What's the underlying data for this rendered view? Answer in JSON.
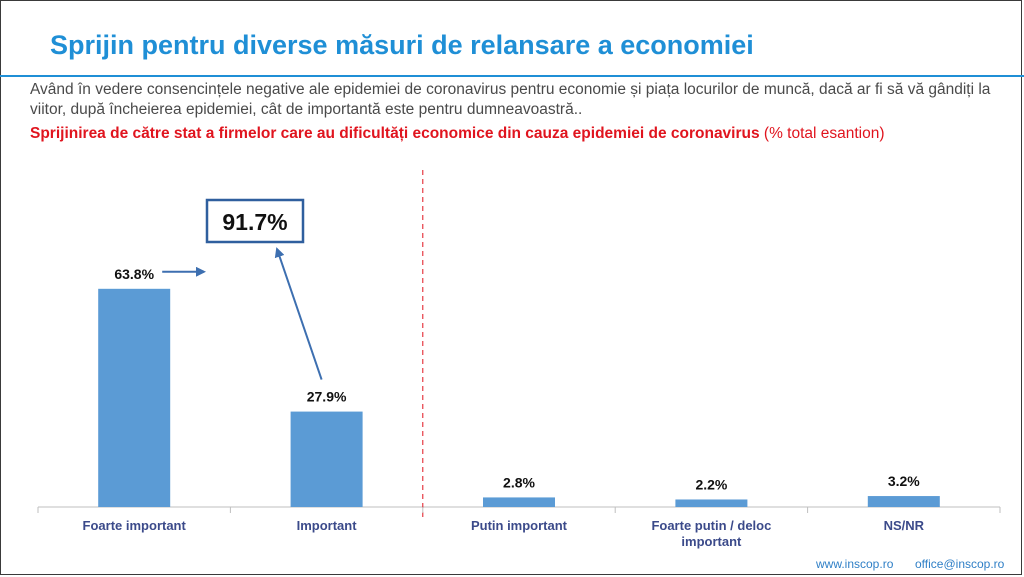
{
  "slide": {
    "title": "Sprijin pentru diverse măsuri de relansare a economiei",
    "question": "Având în vedere consencințele negative ale epidemiei de coronavirus pentru economie și piața locurilor de muncă, dacă ar fi să vă gândiți la viitor, după încheierea epidemiei, cât de importantă este pentru dumneavoastră..",
    "subtitle_bold": "Sprijinirea de către stat a firmelor care au dificultăți economice din cauza epidemiei de coronavirus",
    "subtitle_rest": " (% total esantion)",
    "callout_value": "91.7%",
    "footer_web": "www.inscop.ro",
    "footer_email": "office@inscop.ro"
  },
  "colors": {
    "bar": "#5b9bd5",
    "title": "#1f8fd6",
    "accent_red": "#e0141e",
    "arrow": "#3d6fb0",
    "callout_border": "#2f5f9e"
  },
  "chart_data": {
    "type": "bar",
    "categories": [
      "Foarte important",
      "Important",
      "Putin important",
      "Foarte putin / deloc important",
      "NS/NR"
    ],
    "category_lines": [
      [
        "Foarte important"
      ],
      [
        "Important"
      ],
      [
        "Putin important"
      ],
      [
        "Foarte putin / deloc",
        "important"
      ],
      [
        "NS/NR"
      ]
    ],
    "values": [
      63.8,
      27.9,
      2.8,
      2.2,
      3.2
    ],
    "value_labels": [
      "63.8%",
      "27.9%",
      "2.8%",
      "2.2%",
      "3.2%"
    ],
    "ylim": [
      0,
      100
    ],
    "grid": false,
    "legend": "none",
    "divider_after_category": 1
  }
}
